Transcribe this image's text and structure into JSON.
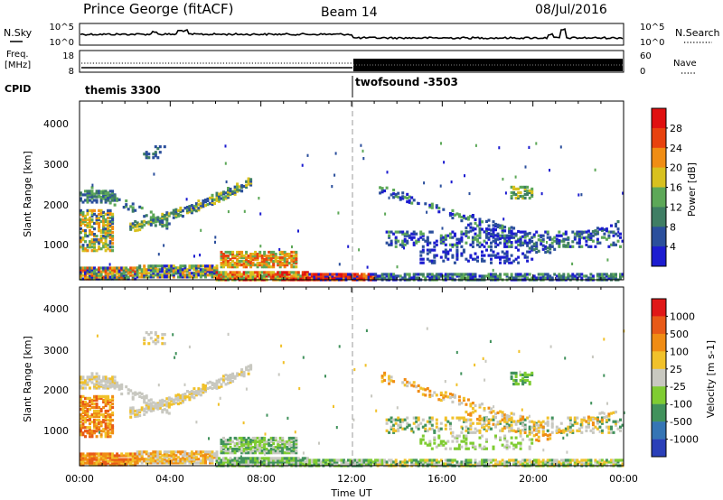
{
  "header": {
    "radar": "Prince George (fitACF)",
    "beam": "Beam 14",
    "date": "08/Jul/2016"
  },
  "noise_panel": {
    "left_label": "N.Sky",
    "right_label": "N.Search",
    "left_ticks": [
      "10^5",
      "10^0"
    ],
    "right_ticks": [
      "10^5",
      "10^0"
    ]
  },
  "freq_panel": {
    "left_label_1": "Freq.",
    "left_label_2": "[MHz]",
    "right_label": "Nave",
    "left_ticks": [
      "18",
      "8"
    ],
    "right_ticks": [
      "60",
      "0"
    ]
  },
  "cpid_panel": {
    "label": "CPID",
    "modes": [
      "themis 3300",
      "twofsound -3503"
    ]
  },
  "chart_data": [
    {
      "type": "heatmap",
      "title": "Power",
      "ylabel": "Slant Range [km]",
      "xlabel": "Time UT",
      "y_ticks": [
        "1000",
        "2000",
        "3000",
        "4000"
      ],
      "x_ticks": [
        "00:00",
        "04:00",
        "08:00",
        "12:00",
        "16:00",
        "20:00",
        "00:00"
      ],
      "ylim": [
        180,
        4600
      ],
      "colorbar_label": "Power [dB]",
      "colorbar_ticks": [
        "4",
        "8",
        "12",
        "16",
        "20",
        "24",
        "28"
      ],
      "colors": [
        "#1c1cd0",
        "#2b4f9c",
        "#3f7e64",
        "#5da858",
        "#d8c11f",
        "#f08d14",
        "#e8420f",
        "#e01010"
      ]
    },
    {
      "type": "heatmap",
      "title": "Velocity",
      "ylabel": "Slant Range [km]",
      "xlabel": "Time UT",
      "y_ticks": [
        "1000",
        "2000",
        "3000",
        "4000"
      ],
      "x_ticks": [
        "00:00",
        "04:00",
        "08:00",
        "12:00",
        "16:00",
        "20:00",
        "00:00"
      ],
      "ylim": [
        180,
        4600
      ],
      "colorbar_label": "Velocity [m s-1]",
      "colorbar_ticks": [
        "1000",
        "500",
        "100",
        "25",
        "-25",
        "-100",
        "-500",
        "-1000"
      ],
      "colors": [
        "#2a3fb8",
        "#3575b5",
        "#41925c",
        "#7fcc32",
        "#c8c8c0",
        "#f1c12a",
        "#f08c14",
        "#e85a18",
        "#e01818"
      ]
    }
  ]
}
